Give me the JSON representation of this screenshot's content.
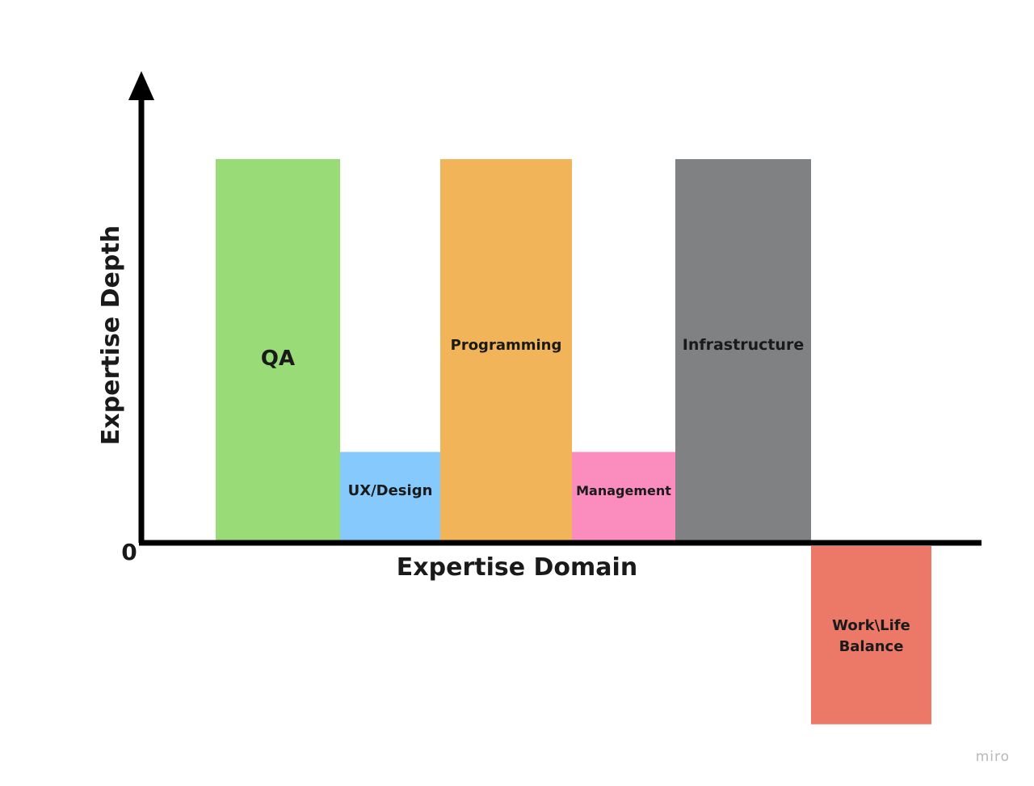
{
  "chart_data": {
    "type": "bar",
    "title": "",
    "xlabel": "Expertise Domain",
    "ylabel": "Expertise Depth",
    "origin_label": "0",
    "grid": false,
    "legend": "none",
    "ylim": [
      -100,
      211
    ],
    "categories": [
      "QA",
      "UX/Design",
      "Programming",
      "Management",
      "Infrastructure",
      "Work\\Life Balance"
    ],
    "values": [
      211,
      50,
      211,
      50,
      211,
      -98
    ],
    "colors": [
      "#99dc77",
      "#86c9fd",
      "#f1b458",
      "#fb8cbe",
      "#808183",
      "#ec7868"
    ]
  },
  "watermark": "miro"
}
